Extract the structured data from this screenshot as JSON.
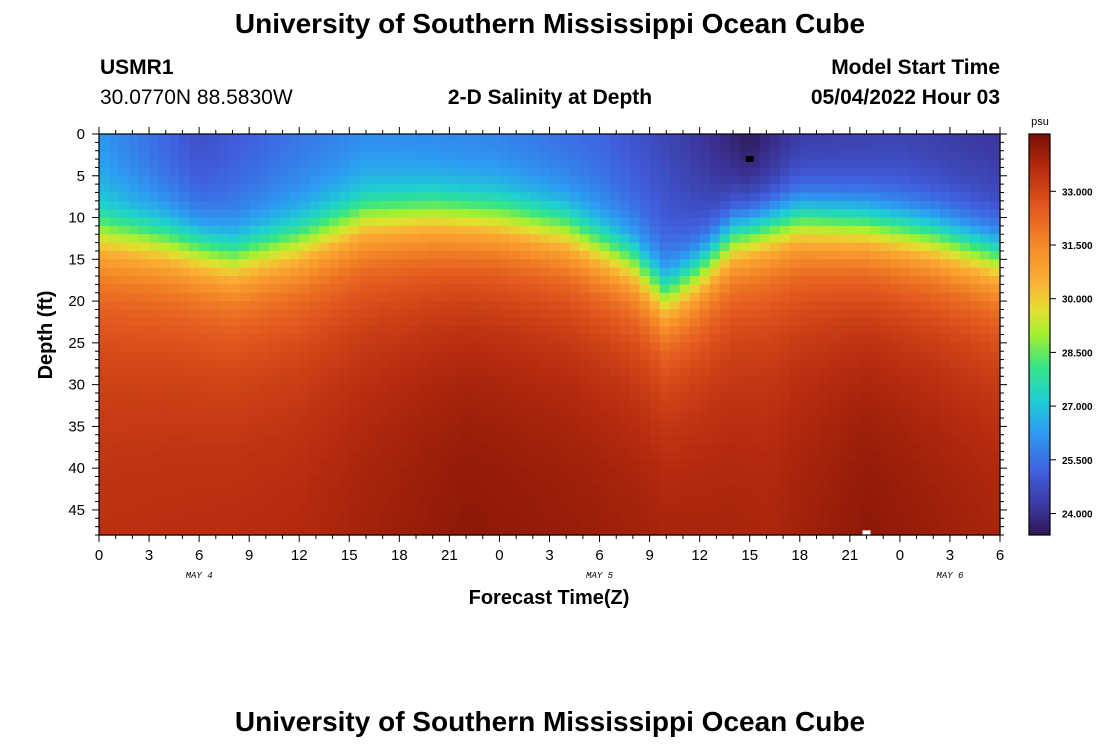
{
  "header": {
    "title": "University of Southern Mississippi Ocean Cube",
    "station_id": "USMR1",
    "coordinates": "30.0770N  88.5830W",
    "plot_title": "2-D Salinity at Depth",
    "model_start_label": "Model Start Time",
    "model_start_value": "05/04/2022 Hour 03"
  },
  "footer": {
    "title": "University of Southern Mississippi Ocean Cube"
  },
  "chart_data": {
    "type": "heatmap",
    "title": "2-D Salinity at Depth",
    "xlabel": "Forecast Time(Z)",
    "ylabel": "Depth (ft)",
    "x_tick_labels": [
      "0",
      "3",
      "6",
      "9",
      "12",
      "15",
      "18",
      "21",
      "0",
      "3",
      "6",
      "9",
      "12",
      "15",
      "18",
      "21",
      "0",
      "3",
      "6"
    ],
    "date_labels": [
      {
        "text": "MAY 4",
        "hour": 6
      },
      {
        "text": "MAY 5",
        "hour": 30
      },
      {
        "text": "MAY 6",
        "hour": 51
      }
    ],
    "xlim_hours": [
      0,
      54
    ],
    "y_ticks": [
      0,
      5,
      10,
      15,
      20,
      25,
      30,
      35,
      40,
      45
    ],
    "ylim": [
      0,
      48
    ],
    "colorbar": {
      "unit": "psu",
      "ticks": [
        "33.000",
        "31.500",
        "30.000",
        "28.500",
        "27.000",
        "25.500",
        "24.000"
      ],
      "tick_values": [
        33.0,
        31.5,
        30.0,
        28.5,
        27.0,
        25.5,
        24.0
      ],
      "range": [
        23.4,
        34.6
      ]
    },
    "halocline_depth_ft": [
      {
        "hour": 0,
        "depth": 9.5
      },
      {
        "hour": 4,
        "depth": 10.5
      },
      {
        "hour": 8,
        "depth": 12.5
      },
      {
        "hour": 12,
        "depth": 10.5
      },
      {
        "hour": 16,
        "depth": 7.5
      },
      {
        "hour": 20,
        "depth": 7.0
      },
      {
        "hour": 24,
        "depth": 7.5
      },
      {
        "hour": 28,
        "depth": 9.0
      },
      {
        "hour": 32,
        "depth": 13.0
      },
      {
        "hour": 34,
        "depth": 17.0
      },
      {
        "hour": 36,
        "depth": 14.0
      },
      {
        "hour": 38,
        "depth": 10.0
      },
      {
        "hour": 42,
        "depth": 8.0
      },
      {
        "hour": 46,
        "depth": 8.5
      },
      {
        "hour": 50,
        "depth": 10.0
      },
      {
        "hour": 54,
        "depth": 12.5
      }
    ],
    "surface_salinity_psu": [
      {
        "hour": 0,
        "value": 26.2
      },
      {
        "hour": 6,
        "value": 24.8
      },
      {
        "hour": 12,
        "value": 25.6
      },
      {
        "hour": 16,
        "value": 26.0
      },
      {
        "hour": 24,
        "value": 25.8
      },
      {
        "hour": 30,
        "value": 25.3
      },
      {
        "hour": 36,
        "value": 24.2
      },
      {
        "hour": 39,
        "value": 23.5
      },
      {
        "hour": 42,
        "value": 24.3
      },
      {
        "hour": 48,
        "value": 24.5
      },
      {
        "hour": 54,
        "value": 24.2
      }
    ],
    "bottom_salinity_psu": [
      {
        "hour": 0,
        "value": 33.6
      },
      {
        "hour": 12,
        "value": 33.8
      },
      {
        "hour": 22,
        "value": 34.4
      },
      {
        "hour": 30,
        "value": 34.2
      },
      {
        "hour": 40,
        "value": 33.9
      },
      {
        "hour": 46,
        "value": 34.4
      },
      {
        "hour": 54,
        "value": 34.0
      }
    ],
    "markers": [
      {
        "hour": 39,
        "depth": 3.0,
        "color": "#000000"
      },
      {
        "hour": 46,
        "depth": 47.8,
        "color": "#ffffff"
      }
    ]
  }
}
